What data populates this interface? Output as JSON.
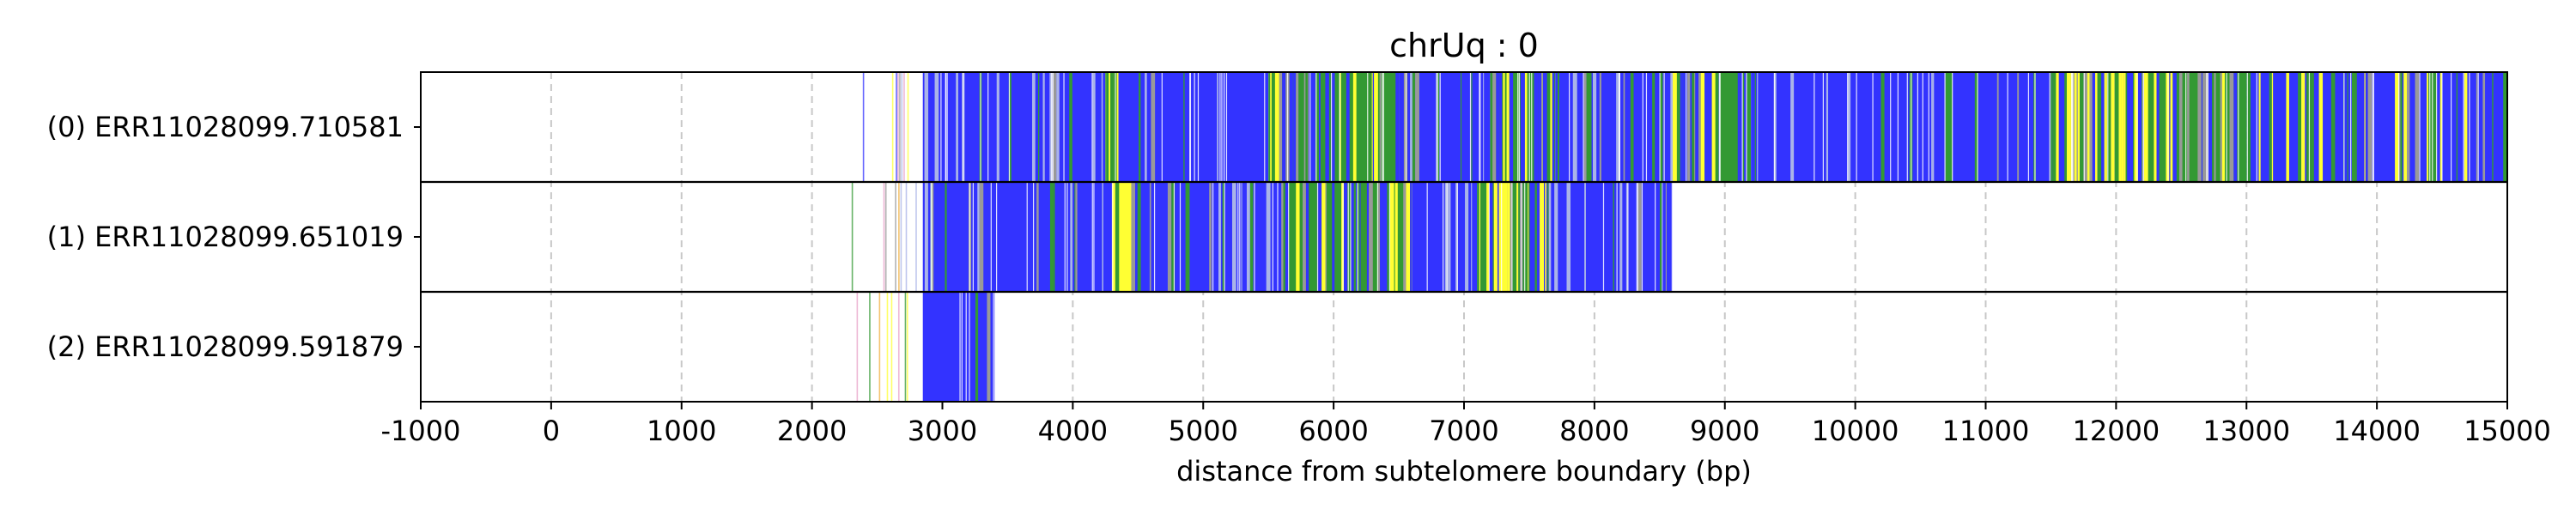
{
  "chart_data": {
    "type": "heatmap",
    "title": "chrUq : 0",
    "xlabel": "distance from subtelomere boundary (bp)",
    "ylabel": "",
    "xlim": [
      -1000,
      15000
    ],
    "x_ticks": [
      "-1000",
      "0",
      "1000",
      "2000",
      "3000",
      "4000",
      "5000",
      "6000",
      "7000",
      "8000",
      "9000",
      "10000",
      "11000",
      "12000",
      "13000",
      "14000",
      "15000"
    ],
    "x_tick_values": [
      -1000,
      0,
      1000,
      2000,
      3000,
      4000,
      5000,
      6000,
      7000,
      8000,
      9000,
      10000,
      11000,
      12000,
      13000,
      14000,
      15000
    ],
    "grid": "vertical dashed",
    "colors": {
      "blue": "#3333ff",
      "green": "#339933",
      "yellow": "#ffff33",
      "grey": "#999999",
      "pale_blue": "#aab4e8",
      "pink": "#e8a0c8",
      "orange": "#f0b040",
      "grid": "#c8c8c8"
    },
    "reads": [
      {
        "label": "(0) ERR11028099.710581",
        "start": 2300,
        "end": 15000,
        "segments": [
          {
            "from": 2300,
            "to": 2850,
            "color": "sparse"
          },
          {
            "from": 2850,
            "to": 4250,
            "color": "blue"
          },
          {
            "from": 4250,
            "to": 4350,
            "color": "yellow"
          },
          {
            "from": 4350,
            "to": 5500,
            "color": "blue"
          },
          {
            "from": 5500,
            "to": 6500,
            "color": "mixed-green"
          },
          {
            "from": 6500,
            "to": 7200,
            "color": "blue"
          },
          {
            "from": 7200,
            "to": 7700,
            "color": "mixed-green"
          },
          {
            "from": 7700,
            "to": 8600,
            "color": "blue"
          },
          {
            "from": 8600,
            "to": 9200,
            "color": "mixed-green"
          },
          {
            "from": 9200,
            "to": 11500,
            "color": "blue"
          },
          {
            "from": 11500,
            "to": 12200,
            "color": "mixed-yellow"
          },
          {
            "from": 12200,
            "to": 13000,
            "color": "mixed-green"
          },
          {
            "from": 13000,
            "to": 15000,
            "color": "mixed-blue"
          }
        ]
      },
      {
        "label": "(1) ERR11028099.651019",
        "start": 2300,
        "end": 8600,
        "segments": [
          {
            "from": 2300,
            "to": 2850,
            "color": "sparse"
          },
          {
            "from": 2850,
            "to": 4300,
            "color": "blue"
          },
          {
            "from": 4300,
            "to": 4450,
            "color": "yellow"
          },
          {
            "from": 4450,
            "to": 5600,
            "color": "blue"
          },
          {
            "from": 5600,
            "to": 6600,
            "color": "mixed-green"
          },
          {
            "from": 6600,
            "to": 7100,
            "color": "blue"
          },
          {
            "from": 7100,
            "to": 7650,
            "color": "mixed-yellow"
          },
          {
            "from": 7650,
            "to": 8600,
            "color": "blue"
          }
        ]
      },
      {
        "label": "(2) ERR11028099.591879",
        "start": 2300,
        "end": 3400,
        "segments": [
          {
            "from": 2300,
            "to": 2850,
            "color": "sparse"
          },
          {
            "from": 2850,
            "to": 3400,
            "color": "blue"
          }
        ]
      }
    ]
  }
}
